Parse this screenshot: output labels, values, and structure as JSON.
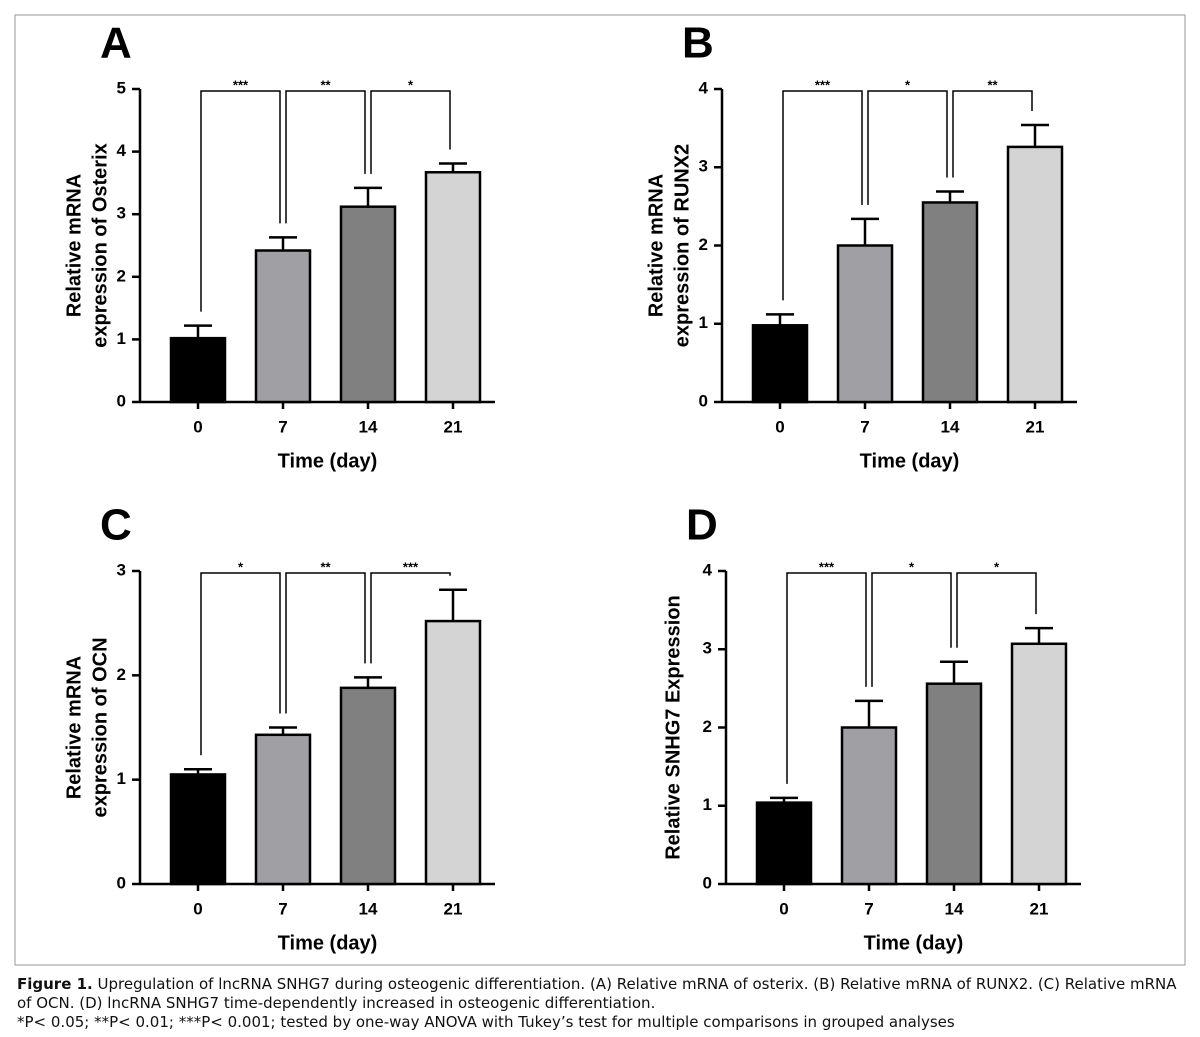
{
  "chart_data": [
    {
      "type": "bar",
      "panel_label": "A",
      "ylabel": [
        "Relative mRNA",
        "expression of Osterix"
      ],
      "xlabel": "Time (day)",
      "categories": [
        "0",
        "7",
        "14",
        "21"
      ],
      "values": [
        1.02,
        2.42,
        3.12,
        3.67
      ],
      "errors": [
        0.2,
        0.21,
        0.3,
        0.14
      ],
      "colors": [
        "#000000",
        "#a0a0a4",
        "#808080",
        "#d4d4d4"
      ],
      "significance": [
        "***",
        "**",
        "*"
      ],
      "ylim": [
        0,
        5
      ],
      "yticks": [
        0,
        1,
        2,
        3,
        4,
        5
      ]
    },
    {
      "type": "bar",
      "panel_label": "B",
      "ylabel": [
        "Relative mRNA",
        "expression of RUNX2"
      ],
      "xlabel": "Time (day)",
      "categories": [
        "0",
        "7",
        "14",
        "21"
      ],
      "values": [
        0.98,
        2.0,
        2.55,
        3.26
      ],
      "errors": [
        0.14,
        0.34,
        0.14,
        0.28
      ],
      "colors": [
        "#000000",
        "#a0a0a4",
        "#808080",
        "#d4d4d4"
      ],
      "significance": [
        "***",
        "*",
        "**"
      ],
      "ylim": [
        0,
        4
      ],
      "yticks": [
        0,
        1,
        2,
        3,
        4
      ]
    },
    {
      "type": "bar",
      "panel_label": "C",
      "ylabel": [
        "Relative mRNA",
        "expression of OCN"
      ],
      "xlabel": "Time (day)",
      "categories": [
        "0",
        "7",
        "14",
        "21"
      ],
      "values": [
        1.05,
        1.43,
        1.88,
        2.52
      ],
      "errors": [
        0.05,
        0.07,
        0.1,
        0.3
      ],
      "colors": [
        "#000000",
        "#a0a0a4",
        "#808080",
        "#d4d4d4"
      ],
      "significance": [
        "*",
        "**",
        "***"
      ],
      "ylim": [
        0,
        3
      ],
      "yticks": [
        0,
        1,
        2,
        3
      ]
    },
    {
      "type": "bar",
      "panel_label": "D",
      "ylabel": [
        "Relative SNHG7 Expression"
      ],
      "xlabel": "Time (day)",
      "categories": [
        "0",
        "7",
        "14",
        "21"
      ],
      "values": [
        1.04,
        2.0,
        2.56,
        3.07
      ],
      "errors": [
        0.06,
        0.34,
        0.28,
        0.2
      ],
      "colors": [
        "#000000",
        "#a0a0a4",
        "#808080",
        "#d4d4d4"
      ],
      "significance": [
        "***",
        "*",
        "*"
      ],
      "ylim": [
        0,
        4
      ],
      "yticks": [
        0,
        1,
        2,
        3,
        4
      ]
    }
  ],
  "caption": {
    "label": "Figure 1.",
    "text": "Upregulation of lncRNA SNHG7 during osteogenic differentiation. (A) Relative mRNA of osterix. (B) Relative mRNA of RUNX2. (C) Relative mRNA of OCN. (D) lncRNA SNHG7 time-dependently increased in osteogenic differentiation.",
    "note": "*P< 0.05; **P< 0.01; ***P< 0.001; tested by one-way ANOVA with Tukey’s test for multiple comparisons in grouped analyses"
  }
}
